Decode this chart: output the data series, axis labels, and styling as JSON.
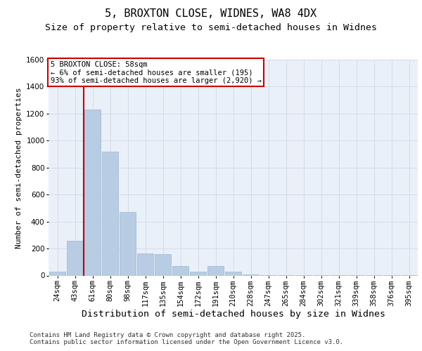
{
  "title": "5, BROXTON CLOSE, WIDNES, WA8 4DX",
  "subtitle": "Size of property relative to semi-detached houses in Widnes",
  "xlabel": "Distribution of semi-detached houses by size in Widnes",
  "ylabel": "Number of semi-detached properties",
  "categories": [
    "24sqm",
    "43sqm",
    "61sqm",
    "80sqm",
    "98sqm",
    "117sqm",
    "135sqm",
    "154sqm",
    "172sqm",
    "191sqm",
    "210sqm",
    "228sqm",
    "247sqm",
    "265sqm",
    "284sqm",
    "302sqm",
    "321sqm",
    "339sqm",
    "358sqm",
    "376sqm",
    "395sqm"
  ],
  "values": [
    30,
    260,
    1230,
    920,
    470,
    165,
    160,
    70,
    30,
    70,
    30,
    10,
    5,
    3,
    2,
    2,
    1,
    1,
    1,
    1,
    1
  ],
  "bar_color": "#b8cce4",
  "bar_edge_color": "#9ab8d4",
  "property_line_x": 1.5,
  "annotation_title": "5 BROXTON CLOSE: 58sqm",
  "annotation_line1": "← 6% of semi-detached houses are smaller (195)",
  "annotation_line2": "93% of semi-detached houses are larger (2,920) →",
  "annotation_box_color": "#ffffff",
  "annotation_border_color": "#cc0000",
  "vline_color": "#cc0000",
  "ylim": [
    0,
    1600
  ],
  "yticks": [
    0,
    200,
    400,
    600,
    800,
    1000,
    1200,
    1400,
    1600
  ],
  "grid_color": "#d0d8e8",
  "background_color": "#eaf0f8",
  "footer_line1": "Contains HM Land Registry data © Crown copyright and database right 2025.",
  "footer_line2": "Contains public sector information licensed under the Open Government Licence v3.0.",
  "title_fontsize": 11,
  "subtitle_fontsize": 9.5,
  "xlabel_fontsize": 9.5,
  "ylabel_fontsize": 8,
  "tick_fontsize": 7.5,
  "footer_fontsize": 6.5,
  "annot_fontsize": 7.5
}
